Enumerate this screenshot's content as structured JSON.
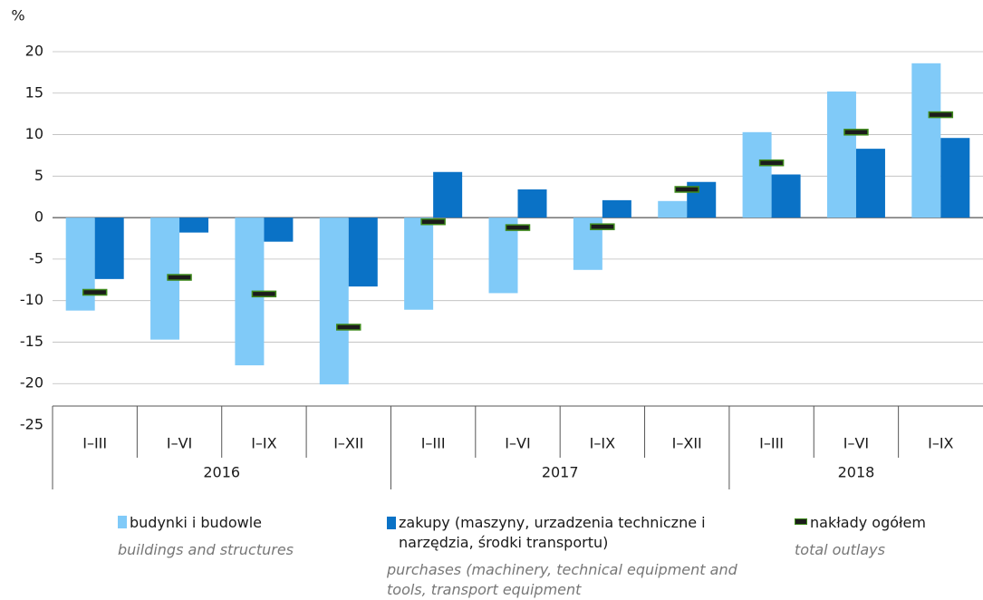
{
  "chart_data": {
    "type": "bar",
    "y_unit": "%",
    "groups": [
      {
        "label": "2016",
        "categories": [
          "I–III",
          "I–VI",
          "I–IX",
          "I–XII"
        ]
      },
      {
        "label": "2017",
        "categories": [
          "I–III",
          "I–VI",
          "I–IX",
          "I–XII"
        ]
      },
      {
        "label": "2018",
        "categories": [
          "I–III",
          "I–VI",
          "I–IX"
        ]
      }
    ],
    "series": [
      {
        "name": "budynki i budowle",
        "name_en": "buildings and structures",
        "color": "#80caf8",
        "mark": "bar",
        "values": [
          -11.2,
          -14.7,
          -17.8,
          -20.1,
          -11.1,
          -9.1,
          -6.3,
          2.0,
          10.3,
          15.2,
          18.6
        ]
      },
      {
        "name": "zakupy (maszyny, urzadzenia techniczne i narzędzia, środki transportu)",
        "name_en": "purchases (machinery, technical equipment and tools, transport equipment",
        "color": "#0a72c6",
        "mark": "bar",
        "values": [
          -7.4,
          -1.8,
          -2.9,
          -8.3,
          5.5,
          3.4,
          2.1,
          4.3,
          5.2,
          8.3,
          9.6
        ]
      },
      {
        "name": "nakłady ogółem",
        "name_en": "total outlays",
        "color": "#1c1c1c",
        "mark": "dash",
        "values": [
          -9.0,
          -7.2,
          -9.2,
          -13.2,
          -0.5,
          -1.2,
          -1.1,
          3.4,
          6.6,
          10.3,
          12.4
        ]
      }
    ],
    "ylim": [
      -25,
      20
    ],
    "yticks": [
      -25,
      -20,
      -15,
      -10,
      -5,
      0,
      5,
      10,
      15,
      20
    ],
    "grid": true
  }
}
